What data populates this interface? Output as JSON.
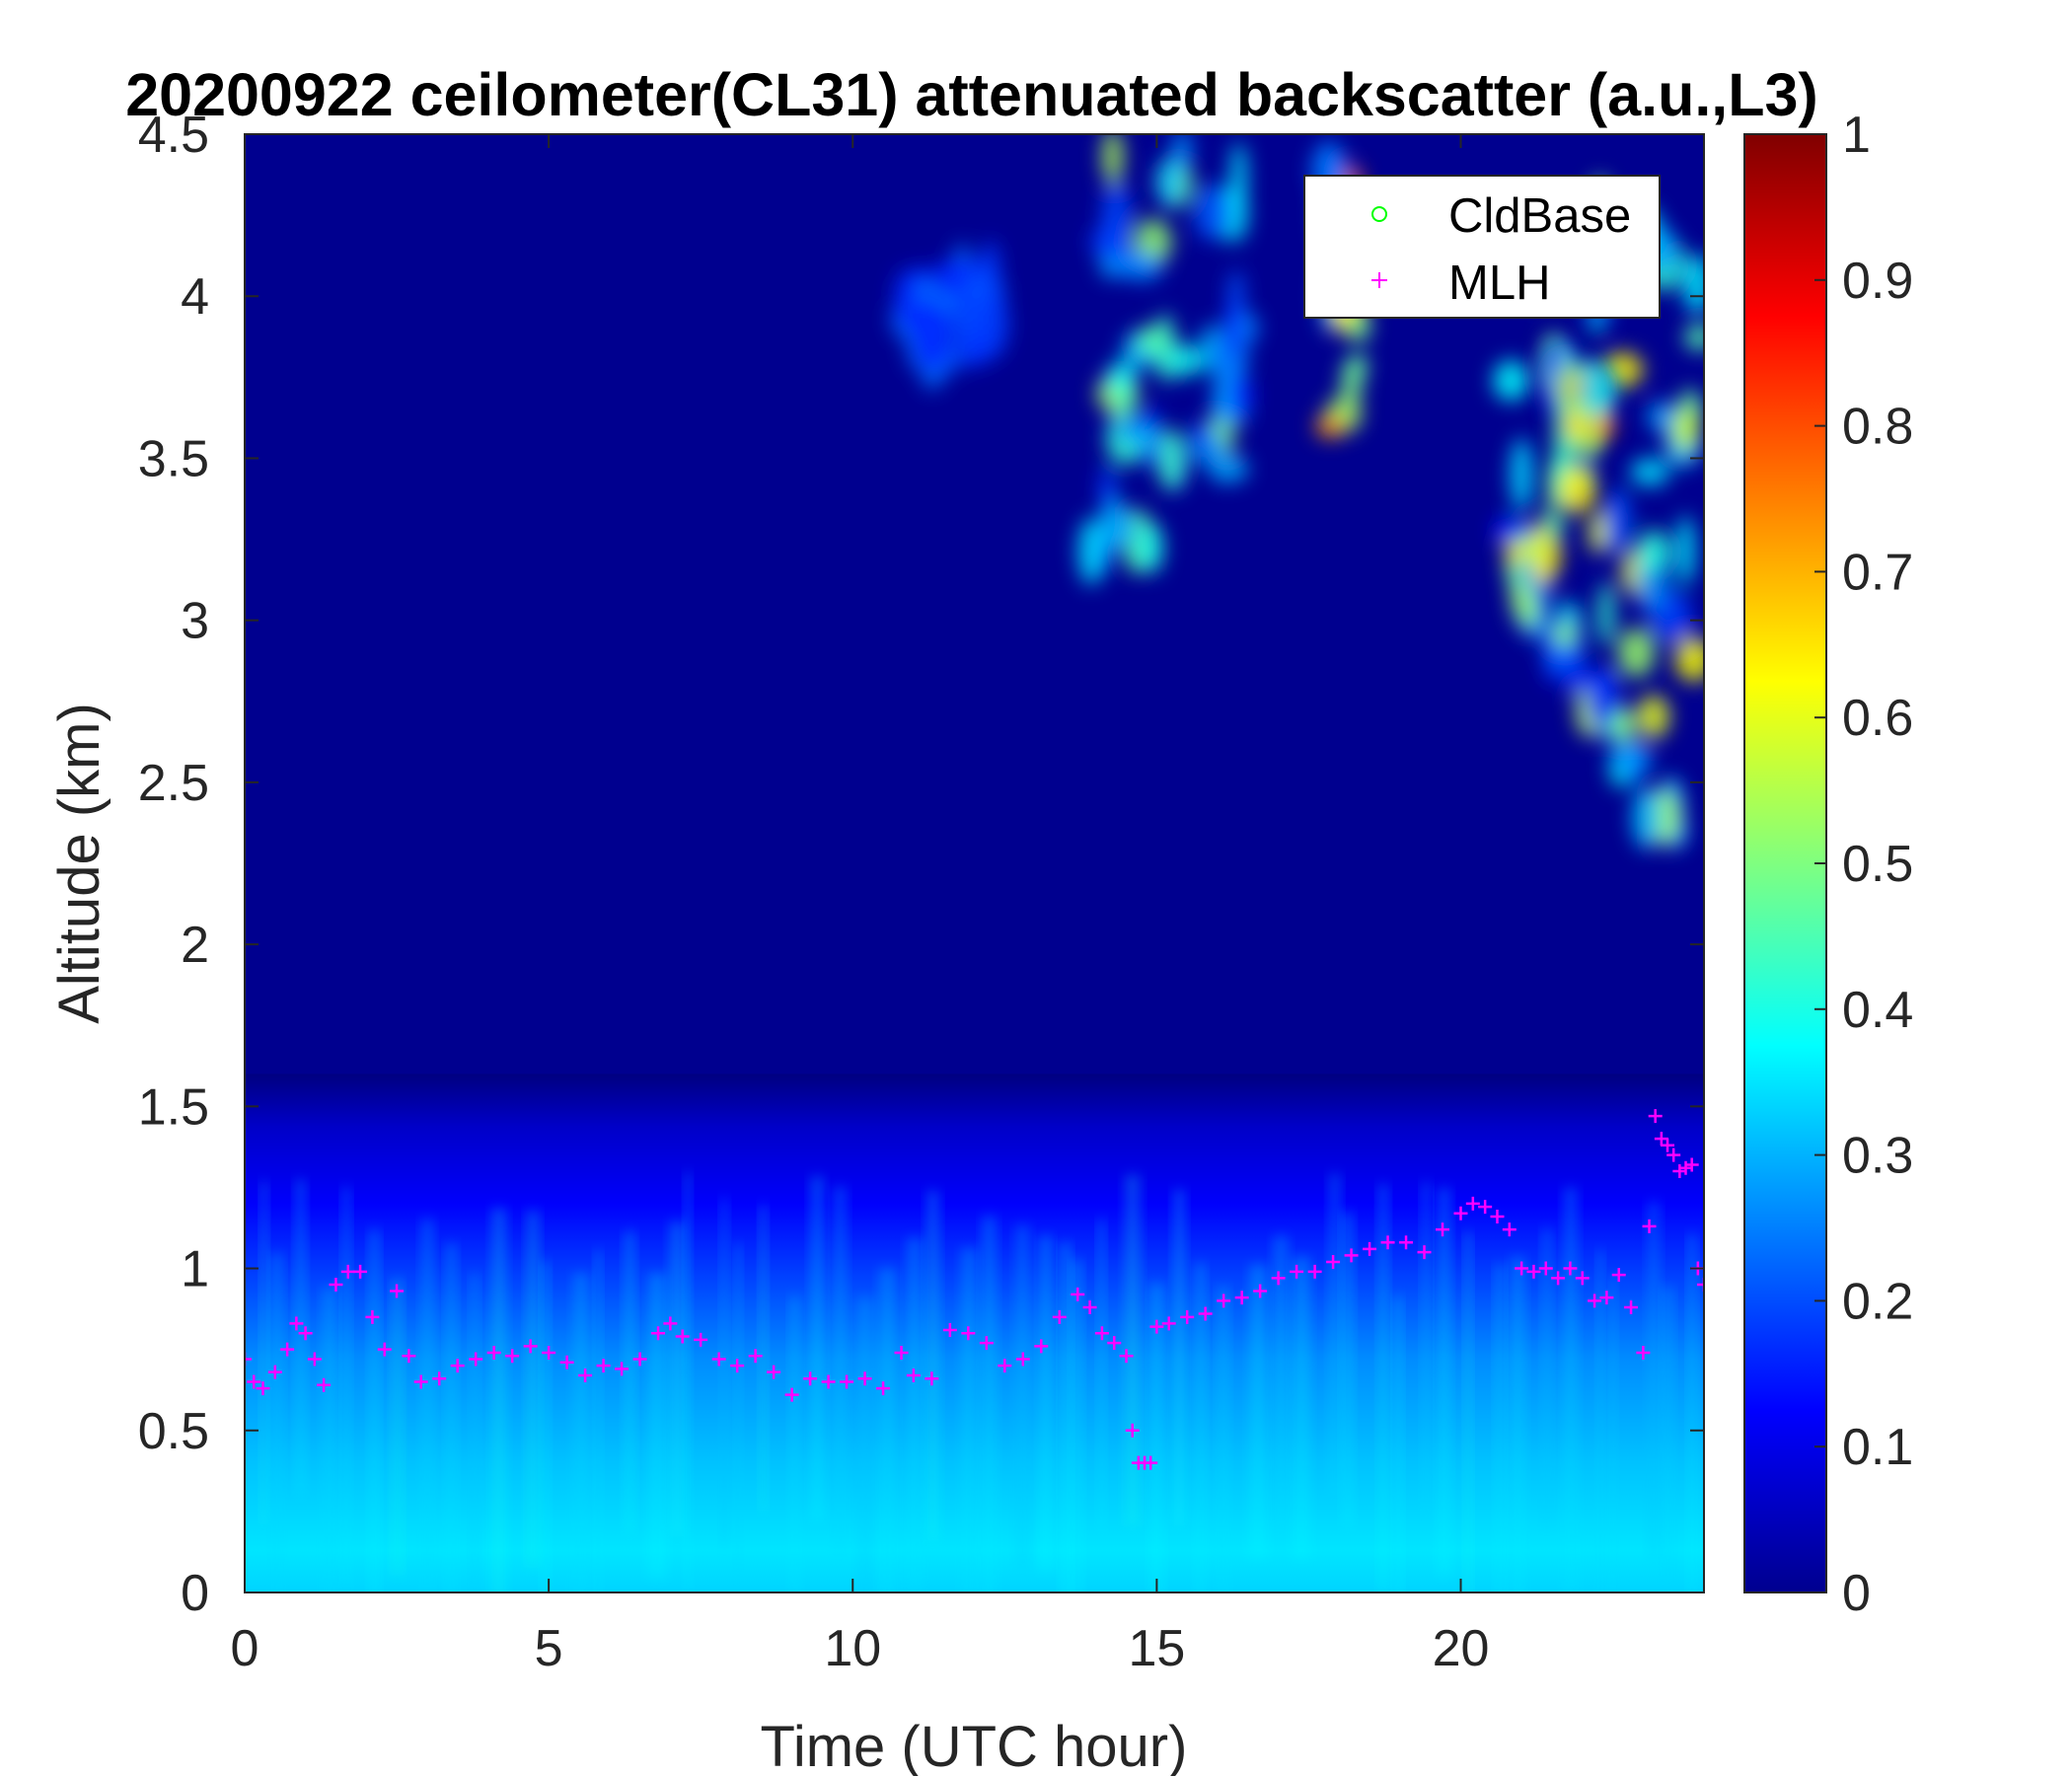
{
  "chart_data": {
    "type": "heatmap",
    "title": "20200922 ceilometer(CL31) attenuated backscatter (a.u.,L3)",
    "xlabel": "Time (UTC hour)",
    "ylabel": "Altitude (km)",
    "xlim": [
      0,
      24
    ],
    "ylim": [
      0,
      4.5
    ],
    "xticks": [
      0,
      5,
      10,
      15,
      20
    ],
    "yticks": [
      0,
      0.5,
      1,
      1.5,
      2,
      2.5,
      3,
      3.5,
      4,
      4.5
    ],
    "colorbar": {
      "colormap": "jet",
      "range": [
        0,
        1
      ],
      "ticks": [
        0,
        0.1,
        0.2,
        0.3,
        0.4,
        0.5,
        0.6,
        0.7,
        0.8,
        0.9,
        1
      ]
    },
    "legend": {
      "position": "top-right",
      "entries": [
        {
          "name": "CldBase",
          "marker": "circle",
          "color": "#00ff00"
        },
        {
          "name": "MLH",
          "marker": "plus",
          "color": "#ff00ff"
        }
      ]
    },
    "grid": false,
    "backscatter_features": [
      {
        "kind": "boundary-layer",
        "t": [
          0,
          24
        ],
        "z": [
          0,
          1.6
        ],
        "value_peak": 0.35
      },
      {
        "kind": "cloud",
        "t": [
          13.9,
          16.4
        ],
        "z": [
          3.2,
          4.5
        ],
        "value_peak": 0.55
      },
      {
        "kind": "cloud",
        "t": [
          17.8,
          18.4
        ],
        "z": [
          3.5,
          4.5
        ],
        "value_peak": 0.8
      },
      {
        "kind": "cloud",
        "t": [
          10.8,
          12.5
        ],
        "z": [
          3.8,
          4.1
        ],
        "value_peak": 0.25
      },
      {
        "kind": "cloud",
        "t": [
          20.8,
          24
        ],
        "z": [
          2.0,
          4.3
        ],
        "value_peak": 0.65
      },
      {
        "kind": "cloud",
        "t": [
          21.5,
          22.3
        ],
        "z": [
          3.4,
          3.8
        ],
        "value_peak": 0.8
      }
    ],
    "series": [
      {
        "name": "CldBase",
        "x": [],
        "y": []
      },
      {
        "name": "MLH",
        "x": [
          0,
          0.15,
          0.3,
          0.5,
          0.7,
          0.85,
          1.0,
          1.15,
          1.3,
          1.5,
          1.7,
          1.9,
          2.1,
          2.3,
          2.5,
          2.7,
          2.9,
          3.2,
          3.5,
          3.8,
          4.1,
          4.4,
          4.7,
          5.0,
          5.3,
          5.6,
          5.9,
          6.2,
          6.5,
          6.8,
          7.0,
          7.2,
          7.5,
          7.8,
          8.1,
          8.4,
          8.7,
          9.0,
          9.3,
          9.6,
          9.9,
          10.2,
          10.5,
          10.8,
          11.0,
          11.3,
          11.6,
          11.9,
          12.2,
          12.5,
          12.8,
          13.1,
          13.4,
          13.7,
          13.9,
          14.1,
          14.3,
          14.5,
          14.6,
          14.7,
          14.8,
          14.9,
          15.0,
          15.2,
          15.5,
          15.8,
          16.1,
          16.4,
          16.7,
          17.0,
          17.3,
          17.6,
          17.9,
          18.2,
          18.5,
          18.8,
          19.1,
          19.4,
          19.7,
          20.0,
          20.2,
          20.4,
          20.6,
          20.8,
          21.0,
          21.2,
          21.4,
          21.6,
          21.8,
          22.0,
          22.2,
          22.4,
          22.6,
          22.8,
          23.0,
          23.1,
          23.2,
          23.3,
          23.4,
          23.5,
          23.6,
          23.7,
          23.8,
          23.9,
          24.0
        ],
        "y": [
          0.72,
          0.65,
          0.63,
          0.68,
          0.75,
          0.83,
          0.8,
          0.72,
          0.64,
          0.95,
          0.99,
          0.99,
          0.85,
          0.75,
          0.93,
          0.73,
          0.65,
          0.66,
          0.7,
          0.72,
          0.74,
          0.73,
          0.76,
          0.74,
          0.71,
          0.67,
          0.7,
          0.69,
          0.72,
          0.8,
          0.83,
          0.79,
          0.78,
          0.72,
          0.7,
          0.73,
          0.68,
          0.61,
          0.66,
          0.65,
          0.65,
          0.66,
          0.63,
          0.74,
          0.67,
          0.66,
          0.81,
          0.8,
          0.77,
          0.7,
          0.72,
          0.76,
          0.85,
          0.92,
          0.88,
          0.8,
          0.77,
          0.73,
          0.5,
          0.4,
          0.4,
          0.4,
          0.82,
          0.83,
          0.85,
          0.86,
          0.9,
          0.91,
          0.93,
          0.97,
          0.99,
          0.99,
          1.02,
          1.04,
          1.06,
          1.08,
          1.08,
          1.05,
          1.12,
          1.17,
          1.2,
          1.19,
          1.16,
          1.12,
          1.0,
          0.99,
          1.0,
          0.97,
          1.0,
          0.97,
          0.9,
          0.91,
          0.98,
          0.88,
          0.74,
          1.13,
          1.47,
          1.4,
          1.38,
          1.35,
          1.3,
          1.31,
          1.32,
          1.0,
          0.95
        ]
      }
    ]
  }
}
